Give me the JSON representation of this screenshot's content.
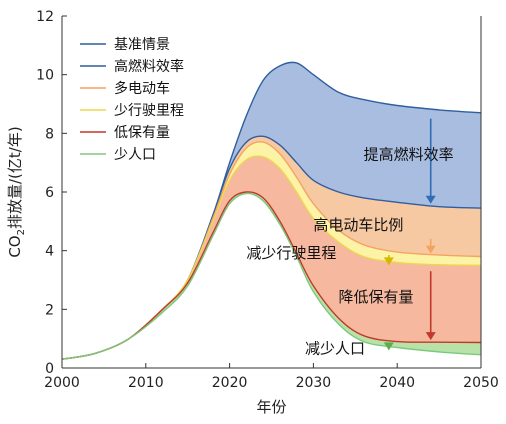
{
  "chart_data": {
    "type": "area",
    "xlabel": "年份",
    "ylabel": "CO2排放量/(亿t/年)",
    "ylabel_parts": {
      "a": "CO",
      "sub": "2",
      "b": "排放量/(亿t/年)"
    },
    "xlim": [
      2000,
      2050
    ],
    "ylim": [
      0,
      12
    ],
    "xticks": [
      2000,
      2010,
      2020,
      2030,
      2040,
      2050
    ],
    "yticks": [
      0,
      2,
      4,
      6,
      8,
      10,
      12
    ],
    "grid": false,
    "legend_position": "top-left",
    "x": [
      2000,
      2004,
      2008,
      2012,
      2015,
      2018,
      2020,
      2022,
      2024,
      2026,
      2028,
      2030,
      2033,
      2036,
      2040,
      2045,
      2050
    ],
    "series": [
      {
        "name": "基准情景",
        "color": "#2f5f9e",
        "fill": "#a9bde0",
        "values": [
          0.3,
          0.5,
          1.0,
          2.0,
          3.0,
          5.2,
          7.0,
          8.6,
          9.8,
          10.3,
          10.4,
          10.0,
          9.4,
          9.15,
          8.95,
          8.8,
          8.7
        ]
      },
      {
        "name": "高燃料效率",
        "color": "#2f5f9e",
        "fill": "#f7c9a3",
        "values": [
          0.3,
          0.5,
          1.0,
          2.0,
          3.0,
          5.2,
          6.8,
          7.7,
          7.9,
          7.6,
          7.0,
          6.4,
          6.0,
          5.8,
          5.65,
          5.5,
          5.45
        ]
      },
      {
        "name": "多电动车",
        "color": "#f4a460",
        "fill": "#fdf3a7",
        "values": [
          0.3,
          0.5,
          1.0,
          2.0,
          3.0,
          5.1,
          6.6,
          7.5,
          7.7,
          7.3,
          6.5,
          5.6,
          4.7,
          4.2,
          3.95,
          3.85,
          3.8
        ]
      },
      {
        "name": "少行驶里程",
        "color": "#ecd84f",
        "fill": "#f6b89e",
        "values": [
          0.3,
          0.5,
          1.0,
          2.0,
          3.0,
          5.0,
          6.4,
          7.1,
          7.2,
          6.8,
          6.0,
          5.1,
          4.3,
          3.8,
          3.6,
          3.52,
          3.5
        ]
      },
      {
        "name": "低保有量",
        "color": "#c0392b",
        "fill": "#b8e2a8",
        "values": [
          0.3,
          0.5,
          1.0,
          2.0,
          2.9,
          4.6,
          5.7,
          6.0,
          5.8,
          5.0,
          3.9,
          2.8,
          1.7,
          1.1,
          0.9,
          0.88,
          0.87
        ]
      },
      {
        "name": "少人口",
        "color": "#7ec87e",
        "fill": null,
        "values": [
          0.3,
          0.5,
          1.0,
          1.9,
          2.8,
          4.5,
          5.6,
          5.95,
          5.7,
          4.9,
          3.8,
          2.6,
          1.5,
          0.9,
          0.7,
          0.55,
          0.45
        ]
      }
    ],
    "annotations": [
      {
        "text": "提高燃料效率",
        "ax": 2036,
        "ay": 7.1,
        "arrow_x": 2044,
        "arrow_from": 8.5,
        "arrow_to": 5.6,
        "color": "#2f6db5"
      },
      {
        "text": "高电动车比例",
        "ax": 2030,
        "ay": 4.7,
        "arrow_x": 2044,
        "arrow_from": 4.4,
        "arrow_to": 3.9,
        "color": "#f4a460"
      },
      {
        "text": "减少行驶里程",
        "ax": 2022,
        "ay": 3.75,
        "arrow_x": 2039,
        "arrow_from": 3.85,
        "arrow_to": 3.5,
        "color": "#d6b800"
      },
      {
        "text": "降低保有量",
        "ax": 2033,
        "ay": 2.25,
        "arrow_x": 2044,
        "arrow_from": 3.3,
        "arrow_to": 0.95,
        "color": "#c0392b"
      },
      {
        "text": "减少人口",
        "ax": 2029,
        "ay": 0.5,
        "arrow_x": 2039,
        "arrow_from": 0.85,
        "arrow_to": 0.6,
        "color": "#5cae4a"
      }
    ]
  }
}
